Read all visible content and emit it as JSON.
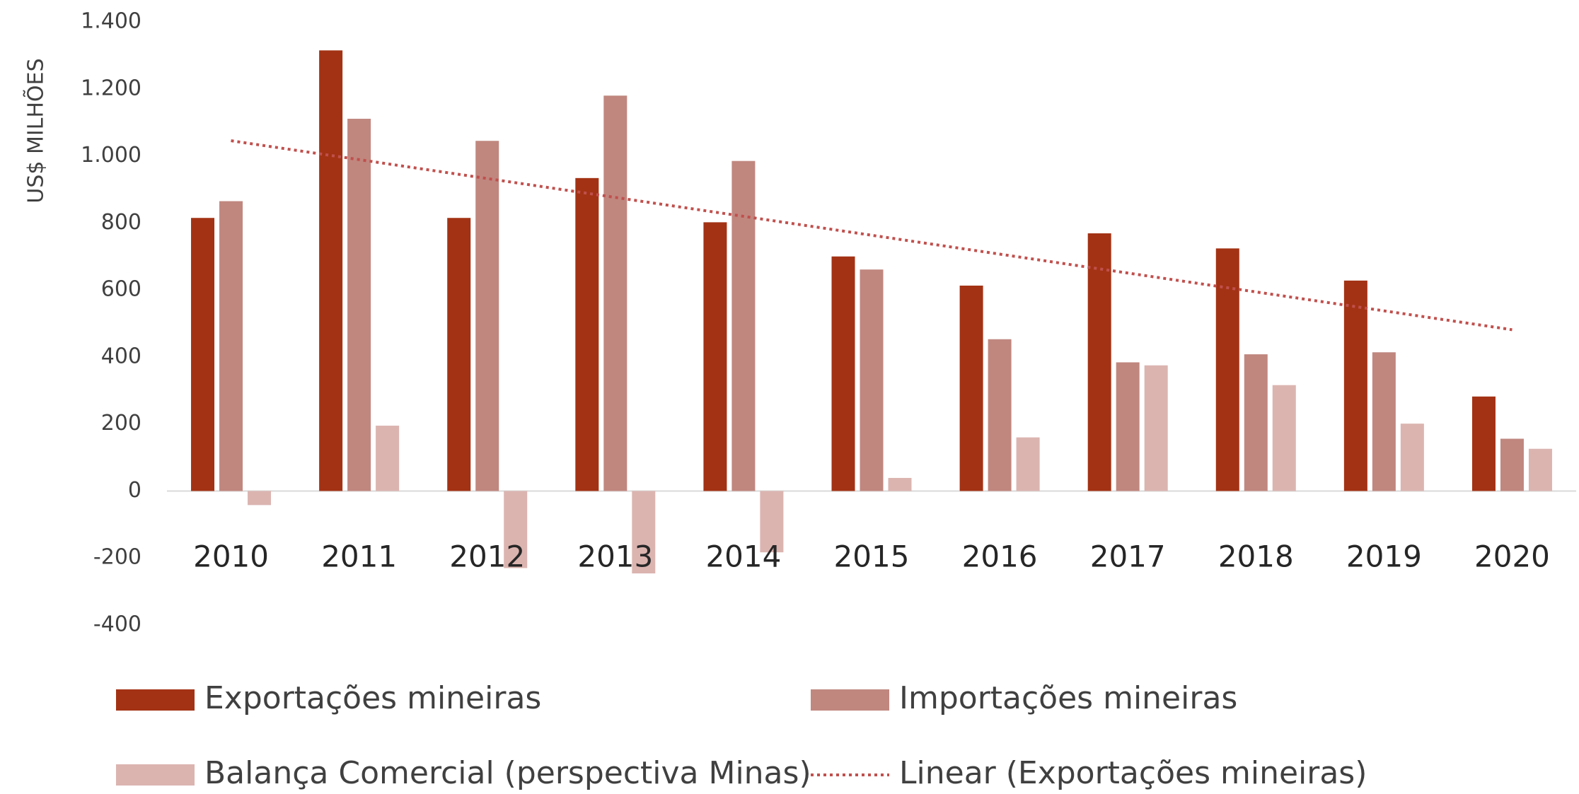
{
  "chart_data": {
    "type": "bar",
    "ylabel": "US$ MILHÕES",
    "categories": [
      "2010",
      "2011",
      "2012",
      "2013",
      "2014",
      "2015",
      "2016",
      "2017",
      "2018",
      "2019",
      "2020"
    ],
    "series": [
      {
        "name": "Exportações mineiras",
        "color": "#a33214",
        "values": [
          815,
          1315,
          815,
          934,
          802,
          700,
          613,
          769,
          724,
          628,
          282
        ]
      },
      {
        "name": "Importações mineiras",
        "color": "#c0877f",
        "values": [
          865,
          1111,
          1045,
          1180,
          985,
          661,
          453,
          384,
          408,
          414,
          156
        ]
      },
      {
        "name": "Balança Comercial (perspectiva Minas)",
        "color": "#dbb4b0",
        "values": [
          -42,
          195,
          -230,
          -246,
          -183,
          39,
          160,
          375,
          316,
          201,
          126
        ]
      }
    ],
    "trendline": {
      "name": "Linear (Exportações mineiras)",
      "of_series": 0,
      "color": "#c0504d"
    },
    "ylim": [
      -400,
      1400
    ],
    "yticks": [
      -400,
      -200,
      0,
      200,
      400,
      600,
      800,
      {
        "value": 1000,
        "label": "1.000"
      },
      {
        "value": 1200,
        "label": "1.200"
      },
      {
        "value": 1400,
        "label": "1.400"
      }
    ]
  }
}
